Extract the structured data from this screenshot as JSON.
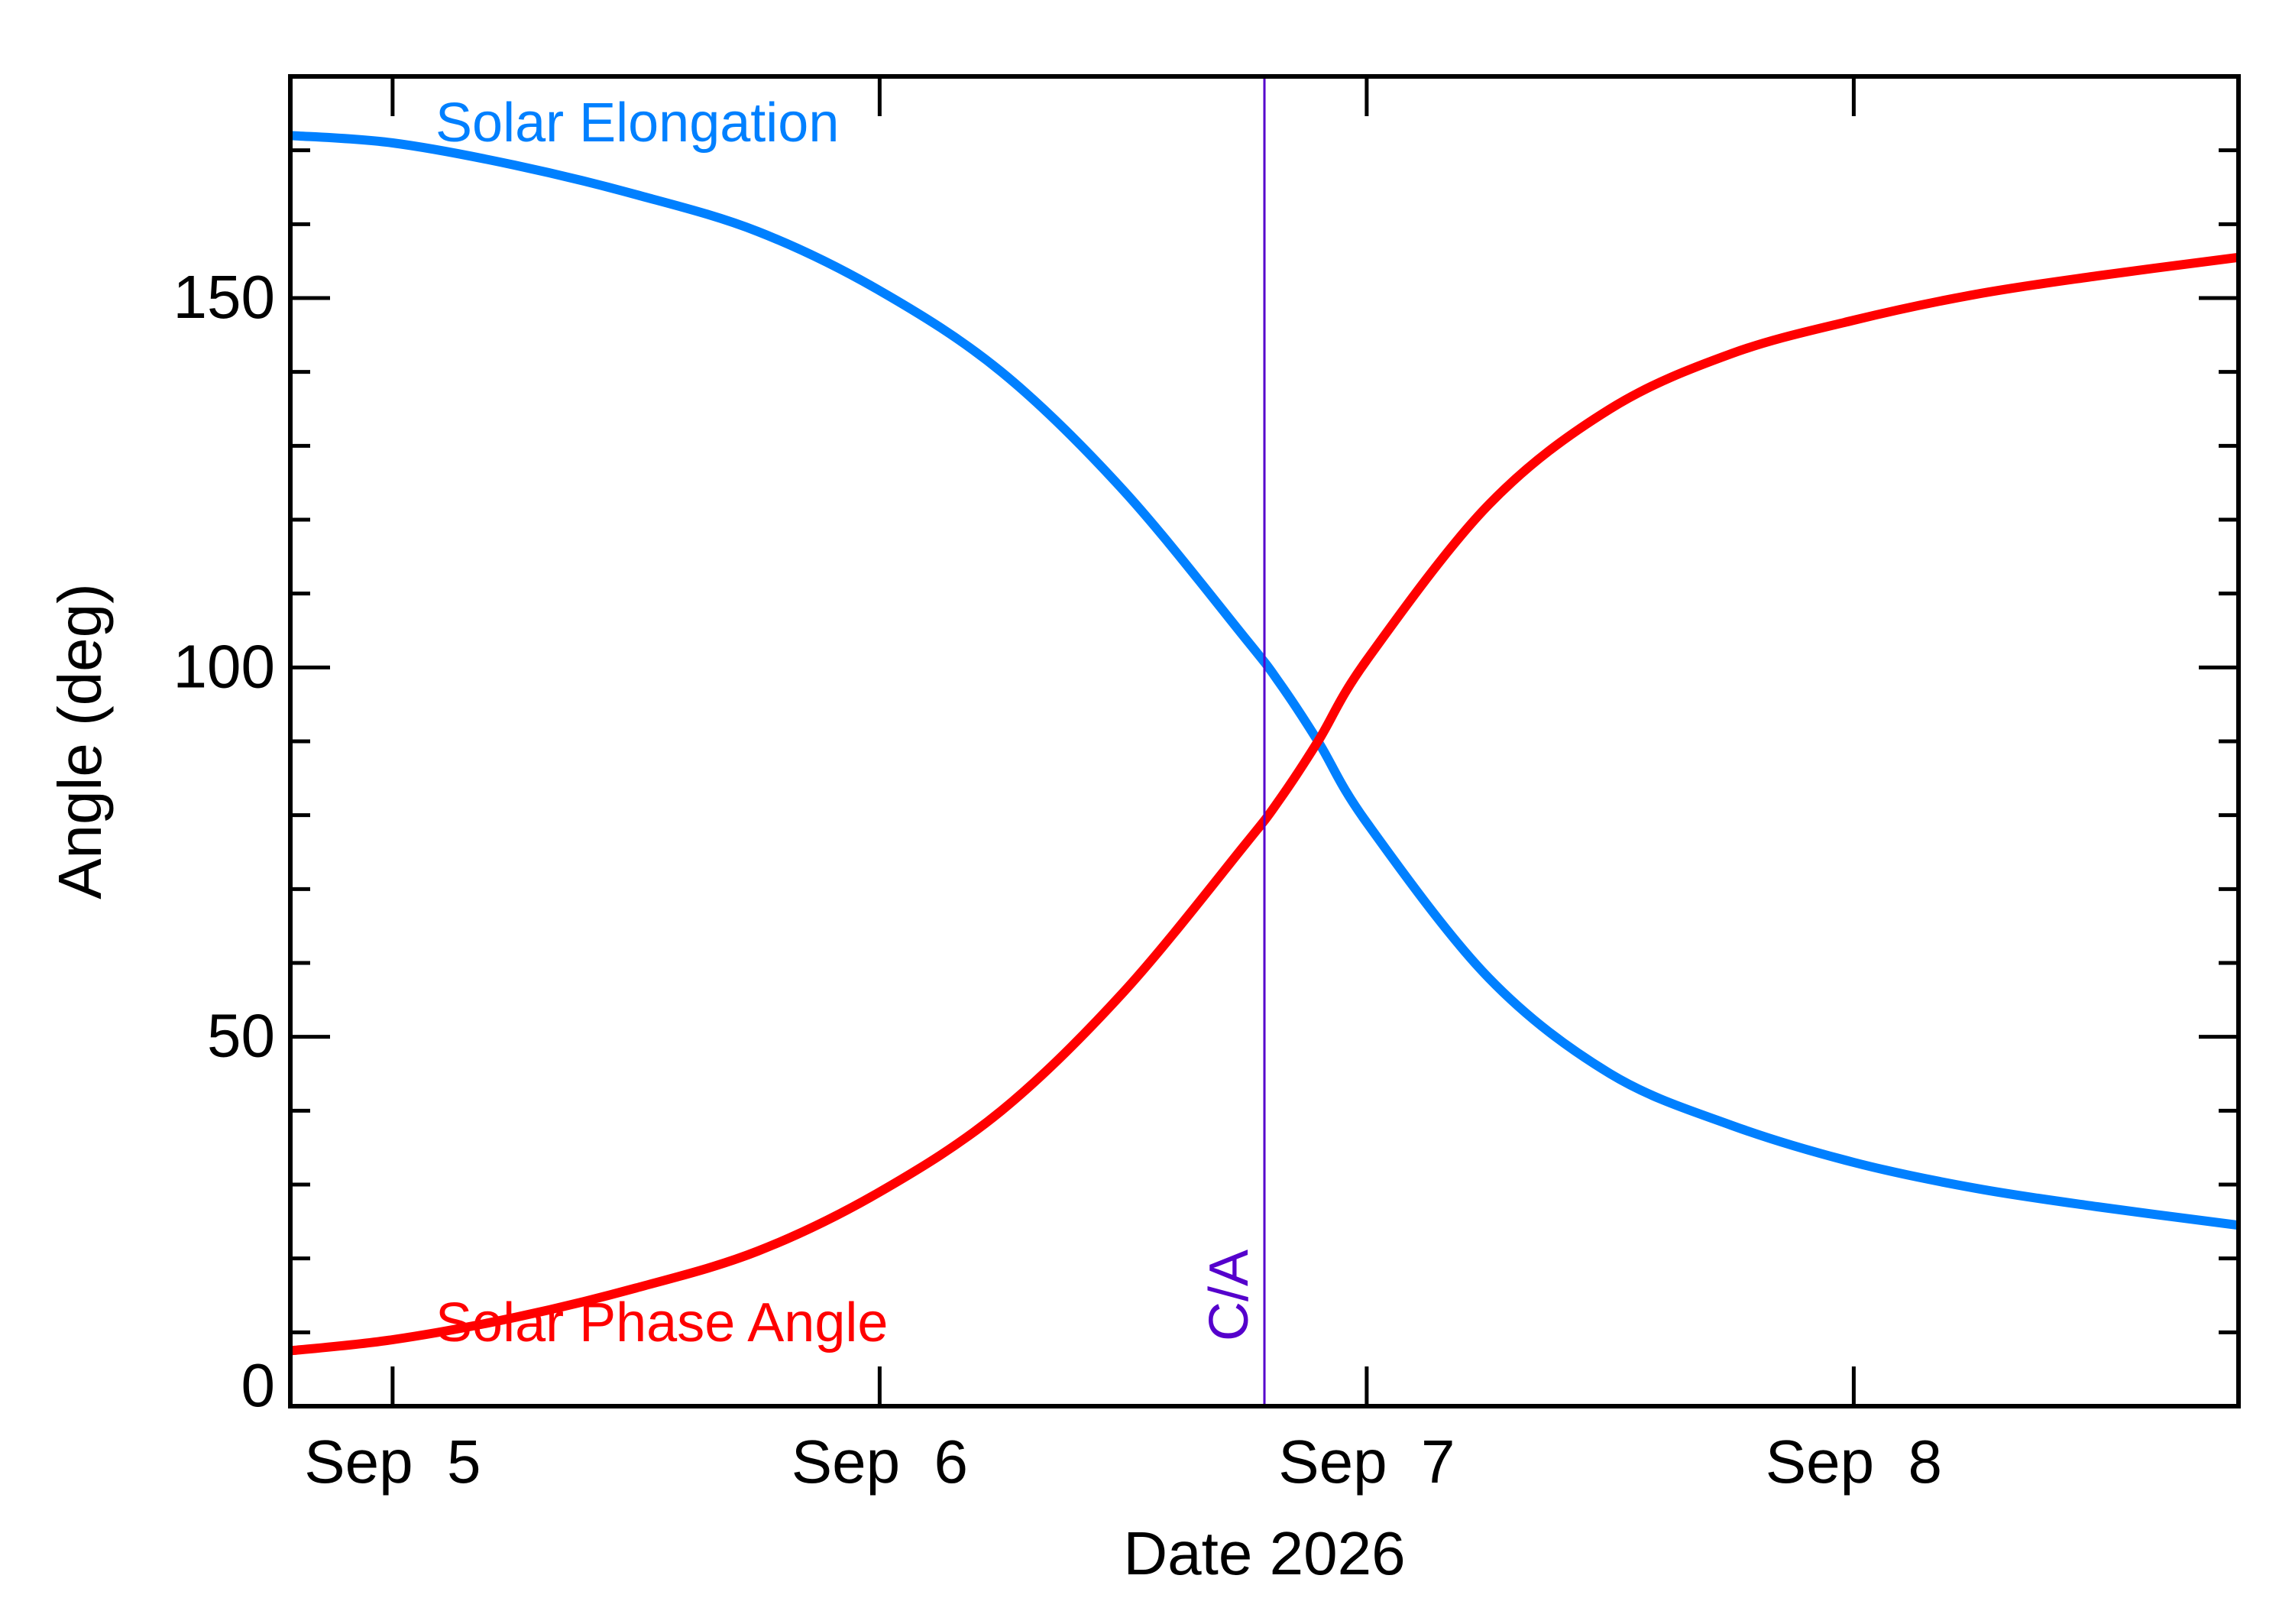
{
  "chart_data": {
    "type": "line",
    "title": "",
    "xlabel": "Date 2026",
    "ylabel": "Angle (deg)",
    "x_unit": "days",
    "xlim": [
      -0.21,
      3.79
    ],
    "ylim": [
      0,
      180
    ],
    "x_ticks": [
      {
        "x": 0,
        "label": "Sep  5"
      },
      {
        "x": 1,
        "label": "Sep  6"
      },
      {
        "x": 2,
        "label": "Sep  7"
      },
      {
        "x": 3,
        "label": "Sep  8"
      }
    ],
    "y_ticks": [
      {
        "y": 0,
        "label": "0"
      },
      {
        "y": 50,
        "label": "50"
      },
      {
        "y": 100,
        "label": "100"
      },
      {
        "y": 150,
        "label": "150"
      }
    ],
    "y_minor_step": 10,
    "grid": false,
    "legend": "inline labels",
    "series": [
      {
        "name": "Solar Elongation",
        "color": "#0080ff",
        "x": [
          -0.21,
          0.0,
          0.25,
          0.5,
          0.75,
          1.0,
          1.25,
          1.5,
          1.75,
          1.82,
          1.9,
          2.0,
          2.25,
          2.5,
          2.75,
          3.0,
          3.25,
          3.5,
          3.79
        ],
        "y": [
          172,
          171,
          168,
          164,
          159,
          151,
          140,
          124,
          104,
          98,
          90,
          79,
          58,
          45,
          38,
          33,
          29.5,
          27,
          24.5
        ]
      },
      {
        "name": "Solar Phase Angle",
        "color": "#ff0000",
        "x": [
          -0.21,
          0.0,
          0.25,
          0.5,
          0.75,
          1.0,
          1.25,
          1.5,
          1.75,
          1.82,
          1.9,
          2.0,
          2.25,
          2.5,
          2.75,
          3.0,
          3.25,
          3.5,
          3.79
        ],
        "y": [
          7.5,
          9,
          12,
          16,
          21,
          29,
          40,
          56,
          76,
          82,
          90,
          101,
          122,
          135,
          142.5,
          147,
          150.5,
          153,
          155.5
        ]
      }
    ],
    "annotations": [
      {
        "label": "C/A",
        "x": 1.79,
        "color": "#5500cc"
      }
    ]
  }
}
